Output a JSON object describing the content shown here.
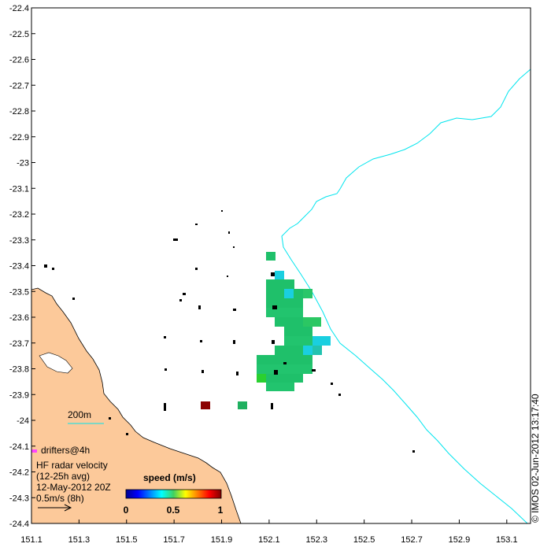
{
  "map": {
    "lon_ticks": [
      "151.1",
      "151.3",
      "151.5",
      "151.7",
      "151.9",
      "152.1",
      "152.3",
      "152.5",
      "152.7",
      "152.9",
      "153.1"
    ],
    "lat_ticks": [
      "-22.4",
      "-22.5",
      "-22.6",
      "-22.7",
      "-22.8",
      "-22.9",
      "-23",
      "-23.1",
      "-23.2",
      "-23.3",
      "-23.4",
      "-23.5",
      "-23.6",
      "-23.7",
      "-23.8",
      "-23.9",
      "-24",
      "-24.1",
      "-24.2",
      "-24.3",
      "-24.4"
    ],
    "lon_range": [
      151.1,
      153.2
    ],
    "lat_range": [
      -24.4,
      -22.4
    ],
    "colors": {
      "land": "#fcc99a",
      "isobath": "#00e5ee",
      "drifter": "#ff44ff",
      "cell_main": "#1fc06a",
      "cell_cyan": "#1acfe0",
      "cell_hot": "#8b0000"
    }
  },
  "labels": {
    "isobath": "200m",
    "drifters": "drifters@4h",
    "radar_line1": "HF radar velocity",
    "radar_line2": "(12-25h avg)",
    "radar_date": "12-May-2012 20Z",
    "scale_label": "0.5m/s (8h)",
    "colorbar_title": "speed (m/s)",
    "cb_ticks": [
      "0",
      "0.5",
      "1"
    ],
    "credit": "© IMOS 02-Jun-2012 13:17:40"
  }
}
